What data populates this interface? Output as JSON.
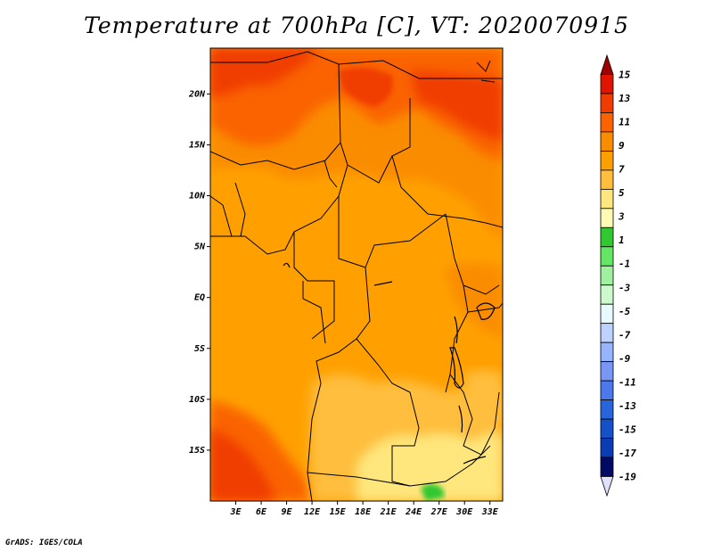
{
  "title": "Temperature at 700hPa [C], VT: 2020070915",
  "credit": "GrADS: IGES/COLA",
  "map": {
    "region": "Central Africa",
    "lat_labels": [
      {
        "text": "20N",
        "lat": 20
      },
      {
        "text": "15N",
        "lat": 15
      },
      {
        "text": "10N",
        "lat": 10
      },
      {
        "text": "5N",
        "lat": 5
      },
      {
        "text": "EQ",
        "lat": 0
      },
      {
        "text": "5S",
        "lat": -5
      },
      {
        "text": "10S",
        "lat": -10
      },
      {
        "text": "15S",
        "lat": -15
      }
    ],
    "lon_labels": [
      {
        "text": "3E",
        "lon": 3
      },
      {
        "text": "6E",
        "lon": 6
      },
      {
        "text": "9E",
        "lon": 9
      },
      {
        "text": "12E",
        "lon": 12
      },
      {
        "text": "15E",
        "lon": 15
      },
      {
        "text": "18E",
        "lon": 18
      },
      {
        "text": "21E",
        "lon": 21
      },
      {
        "text": "24E",
        "lon": 24
      },
      {
        "text": "27E",
        "lon": 27
      },
      {
        "text": "30E",
        "lon": 30
      },
      {
        "text": "33E",
        "lon": 33
      }
    ],
    "lat_range": [
      -20,
      24.5
    ],
    "lon_range": [
      0,
      34.5
    ]
  },
  "colorbar": {
    "labels": [
      "15",
      "13",
      "11",
      "9",
      "7",
      "5",
      "3",
      "1",
      "-1",
      "-3",
      "-5",
      "-7",
      "-9",
      "-11",
      "-13",
      "-15",
      "-17",
      "-19"
    ],
    "colors": [
      "#a00000",
      "#e11400",
      "#f03c00",
      "#fa6400",
      "#fa8c00",
      "#ffa000",
      "#ffbe3c",
      "#ffe67d",
      "#fffab4",
      "#32c832",
      "#64e664",
      "#a0f0a0",
      "#cdfacd",
      "#e6faff",
      "#bed2ff",
      "#96b4ff",
      "#7896f5",
      "#4b78eb",
      "#2864dc",
      "#1450c8",
      "#0a3cb4",
      "#000a64",
      "#e0e0ff"
    ]
  }
}
